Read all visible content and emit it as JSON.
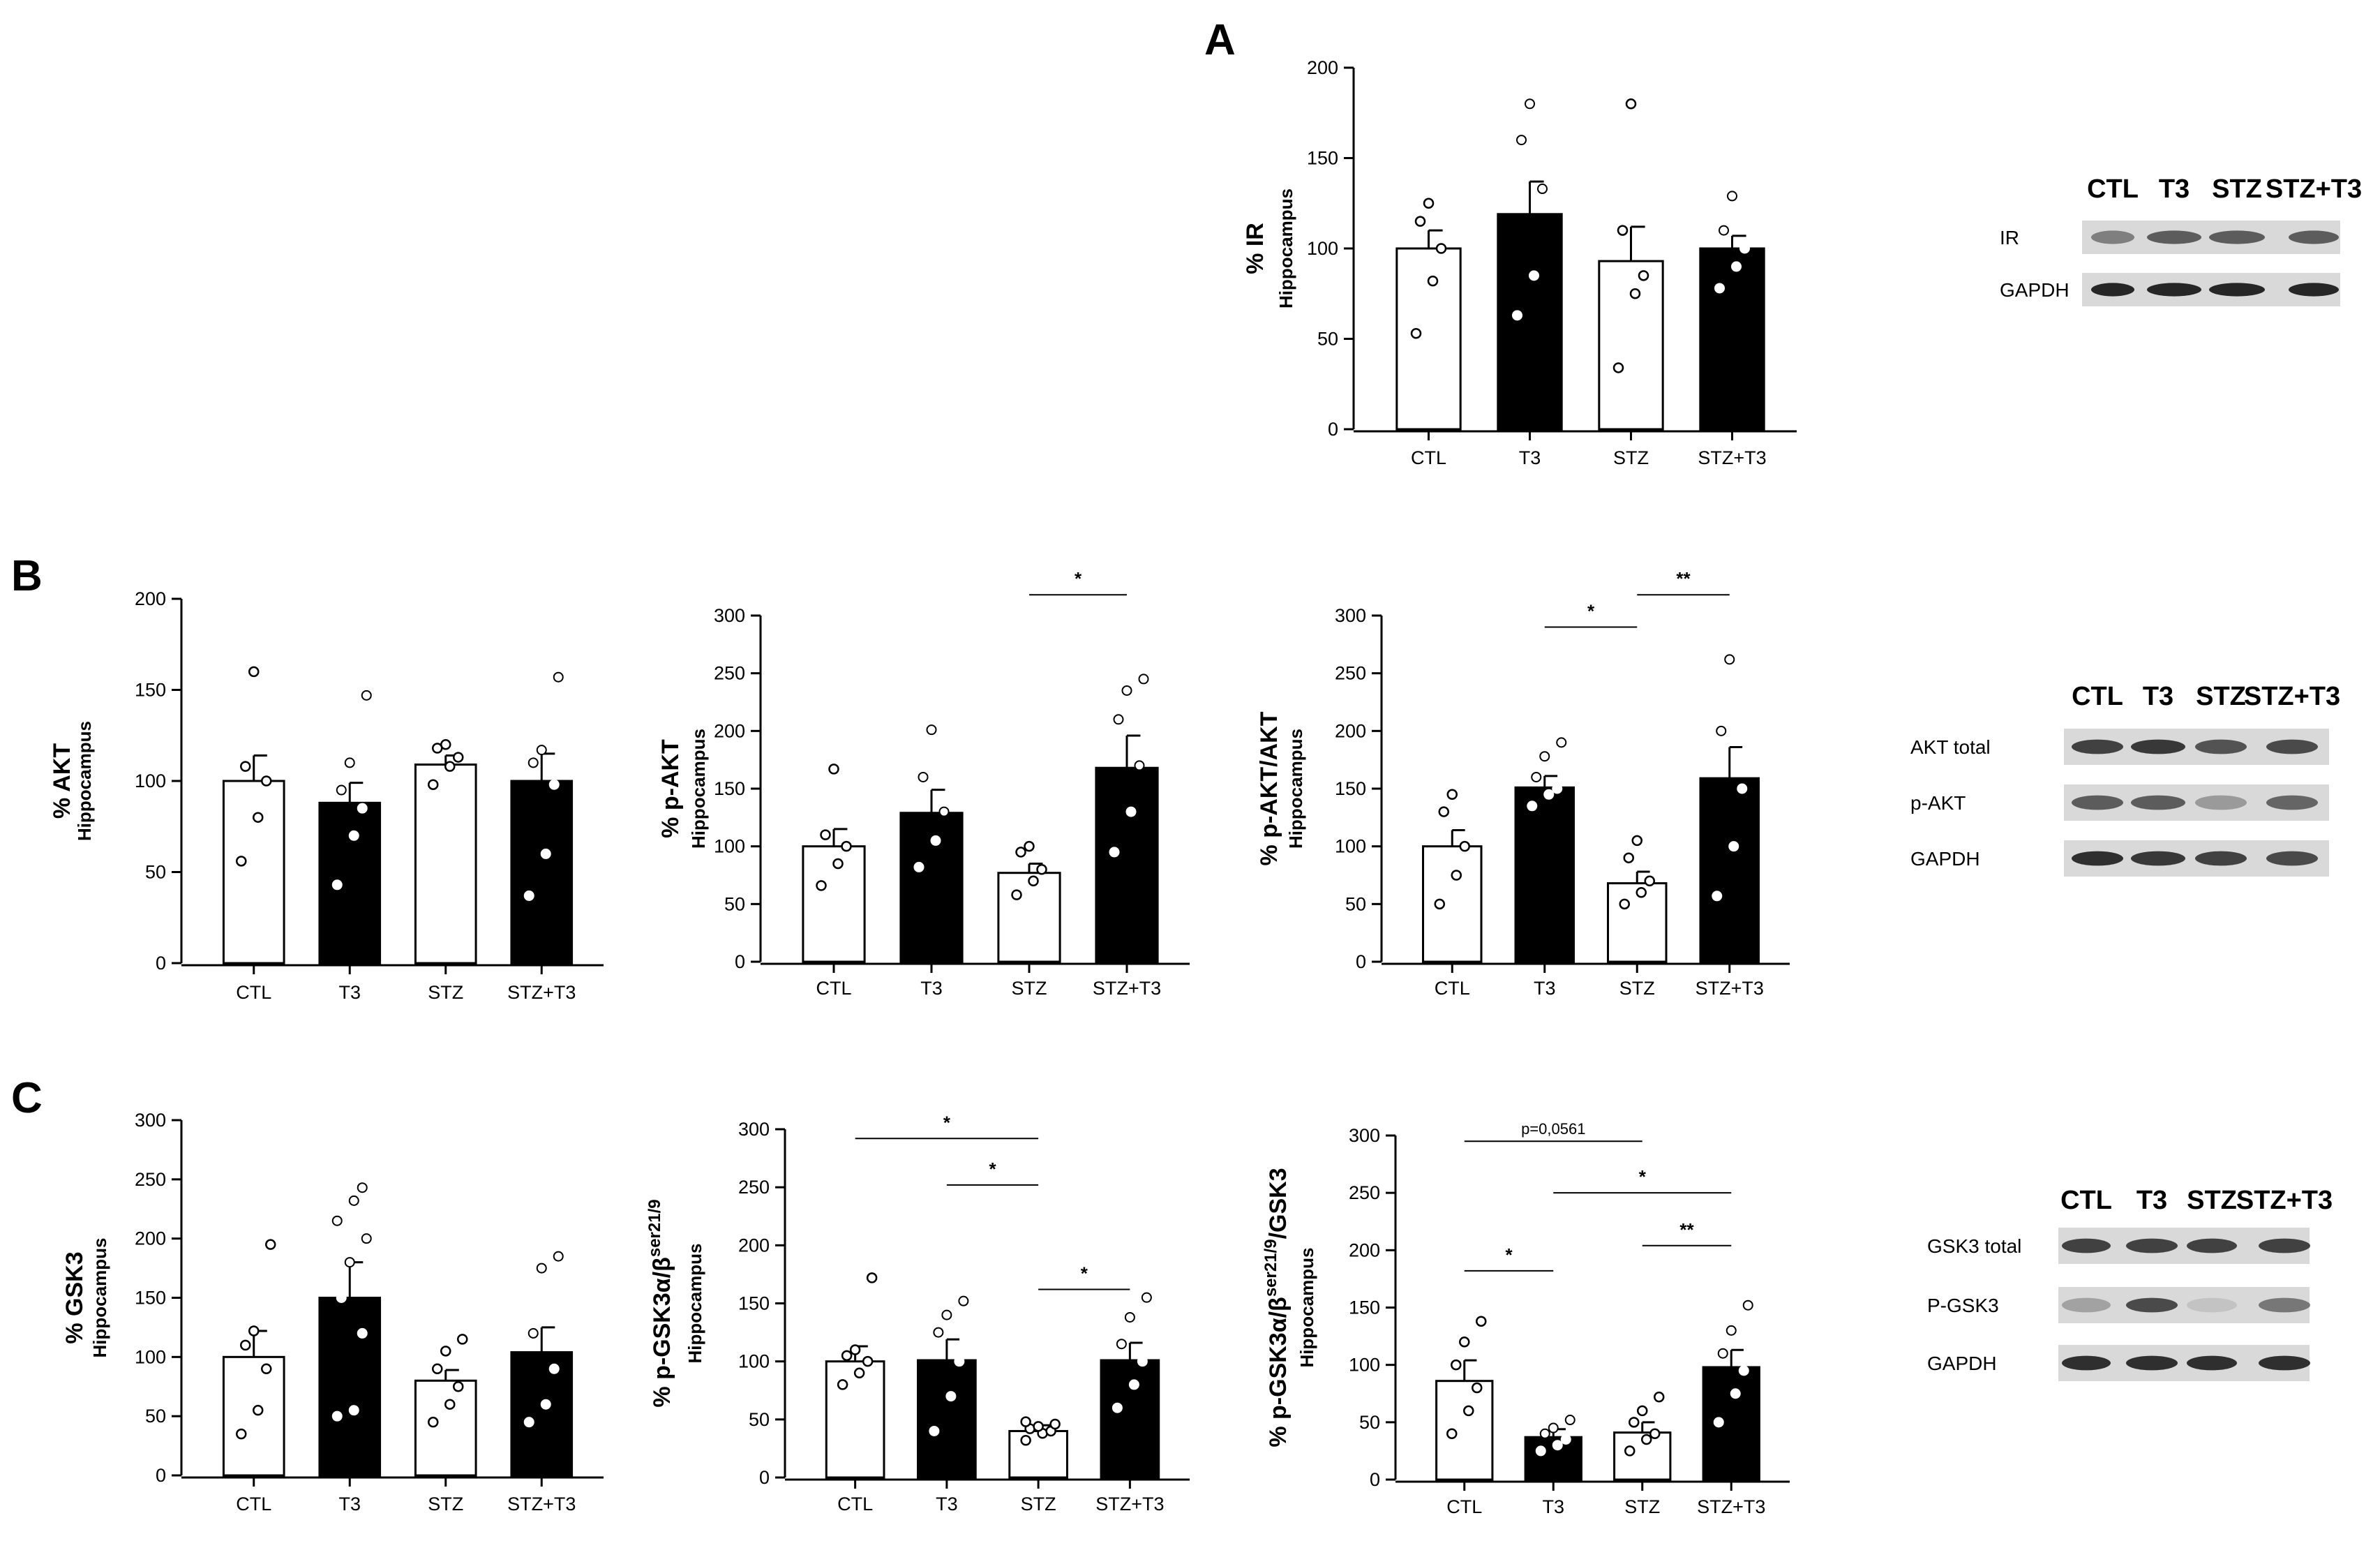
{
  "panels": {
    "A": "A",
    "B": "B",
    "C": "C"
  },
  "colors": {
    "black": "#000000",
    "white": "#ffffff",
    "blot_bg": "#d9d9d9",
    "band": "#262626"
  },
  "chart_data": [
    {
      "id": "A-IR",
      "type": "bar",
      "panel": "A",
      "ylabel": "% IR",
      "ysub": "Hippocampus",
      "categories": [
        "CTL",
        "T3",
        "STZ",
        "STZ+T3"
      ],
      "values": [
        100,
        119,
        93,
        100
      ],
      "errors": [
        10,
        18,
        19,
        7
      ],
      "ylim": [
        0,
        200
      ],
      "yticks": [
        0,
        50,
        100,
        150,
        200
      ],
      "points": [
        [
          53,
          82,
          100,
          115,
          125
        ],
        [
          63,
          85,
          133,
          160,
          180
        ],
        [
          34,
          75,
          85,
          110,
          180
        ],
        [
          78,
          90,
          100,
          110,
          129
        ]
      ],
      "significance": []
    },
    {
      "id": "B-AKT",
      "type": "bar",
      "panel": "B",
      "ylabel": "% AKT",
      "ysub": "Hippocampus",
      "categories": [
        "CTL",
        "T3",
        "STZ",
        "STZ+T3"
      ],
      "values": [
        100,
        88,
        109,
        100
      ],
      "errors": [
        14,
        11,
        5,
        15
      ],
      "ylim": [
        0,
        200
      ],
      "yticks": [
        0,
        50,
        100,
        150,
        200
      ],
      "points": [
        [
          56,
          80,
          100,
          108,
          160
        ],
        [
          43,
          70,
          85,
          95,
          110,
          147
        ],
        [
          98,
          108,
          113,
          118,
          120
        ],
        [
          37,
          60,
          98,
          110,
          117,
          157
        ]
      ],
      "significance": []
    },
    {
      "id": "B-pAKT",
      "type": "bar",
      "panel": "B",
      "ylabel": "% p-AKT",
      "ysub": "Hippocampus",
      "categories": [
        "CTL",
        "T3",
        "STZ",
        "STZ+T3"
      ],
      "values": [
        100,
        129,
        77,
        168
      ],
      "errors": [
        15,
        20,
        8,
        28
      ],
      "ylim": [
        0,
        300
      ],
      "yticks": [
        0,
        50,
        100,
        150,
        200,
        250,
        300
      ],
      "points": [
        [
          66,
          85,
          100,
          110,
          167
        ],
        [
          82,
          105,
          130,
          160,
          201
        ],
        [
          58,
          70,
          80,
          95,
          100
        ],
        [
          95,
          130,
          170,
          210,
          235,
          245
        ]
      ],
      "significance": [
        {
          "from": 2,
          "to": 3,
          "label": "*",
          "y": 318
        }
      ]
    },
    {
      "id": "B-pAKT-AKT",
      "type": "bar",
      "panel": "B",
      "ylabel": "% p-AKT/AKT",
      "ysub": "Hippocampus",
      "categories": [
        "CTL",
        "T3",
        "STZ",
        "STZ+T3"
      ],
      "values": [
        100,
        151,
        68,
        159
      ],
      "errors": [
        14,
        10,
        10,
        27
      ],
      "ylim": [
        0,
        300
      ],
      "yticks": [
        0,
        50,
        100,
        150,
        200,
        250,
        300
      ],
      "points": [
        [
          50,
          75,
          100,
          130,
          145
        ],
        [
          135,
          145,
          150,
          160,
          178,
          190
        ],
        [
          50,
          60,
          70,
          90,
          105
        ],
        [
          57,
          100,
          150,
          200,
          262
        ]
      ],
      "significance": [
        {
          "from": 1,
          "to": 2,
          "label": "*",
          "y": 290
        },
        {
          "from": 2,
          "to": 3,
          "label": "**",
          "y": 318
        }
      ]
    },
    {
      "id": "C-GSK3",
      "type": "bar",
      "panel": "C",
      "ylabel": "% GSK3",
      "ysub": "Hippocampus",
      "categories": [
        "CTL",
        "T3",
        "STZ",
        "STZ+T3"
      ],
      "values": [
        100,
        150,
        80,
        104
      ],
      "errors": [
        22,
        30,
        9,
        21
      ],
      "ylim": [
        0,
        300
      ],
      "yticks": [
        0,
        50,
        100,
        150,
        200,
        250,
        300
      ],
      "points": [
        [
          35,
          55,
          90,
          110,
          122,
          195
        ],
        [
          50,
          55,
          120,
          150,
          180,
          200,
          215,
          232,
          243
        ],
        [
          45,
          60,
          75,
          90,
          105,
          115
        ],
        [
          45,
          60,
          90,
          120,
          175,
          185
        ]
      ],
      "significance": []
    },
    {
      "id": "C-pGSK3",
      "type": "bar",
      "panel": "C",
      "ylabel": "% p-GSK3α/β",
      "ylabel_sup": "ser21/9",
      "ysub": "Hippocampus",
      "categories": [
        "CTL",
        "T3",
        "STZ",
        "STZ+T3"
      ],
      "values": [
        100,
        101,
        40,
        101
      ],
      "errors": [
        13,
        18,
        5,
        15
      ],
      "ylim": [
        0,
        300
      ],
      "yticks": [
        0,
        50,
        100,
        150,
        200,
        250,
        300
      ],
      "points": [
        [
          80,
          90,
          100,
          105,
          110,
          172
        ],
        [
          40,
          70,
          100,
          125,
          140,
          152
        ],
        [
          32,
          38,
          40,
          42,
          44,
          46,
          48
        ],
        [
          60,
          80,
          100,
          115,
          138,
          155
        ]
      ],
      "significance": [
        {
          "from": 0,
          "to": 2,
          "label": "*",
          "y": 292
        },
        {
          "from": 1,
          "to": 2,
          "label": "*",
          "y": 252
        },
        {
          "from": 2,
          "to": 3,
          "label": "*",
          "y": 162
        }
      ]
    },
    {
      "id": "C-pGSK3-GSK3",
      "type": "bar",
      "panel": "C",
      "ylabel": "% p-GSK3α/β",
      "ylabel_sup": "ser21/9",
      "ylabel_tail": "/GSK3",
      "ysub": "Hippocampus",
      "categories": [
        "CTL",
        "T3",
        "STZ",
        "STZ+T3"
      ],
      "values": [
        86,
        37,
        41,
        98
      ],
      "errors": [
        18,
        7,
        9,
        15
      ],
      "ylim": [
        0,
        300
      ],
      "yticks": [
        0,
        50,
        100,
        150,
        200,
        250,
        300
      ],
      "points": [
        [
          40,
          60,
          80,
          100,
          120,
          138
        ],
        [
          25,
          30,
          35,
          40,
          45,
          52
        ],
        [
          25,
          35,
          40,
          50,
          60,
          72
        ],
        [
          50,
          75,
          95,
          110,
          130,
          152
        ]
      ],
      "significance": [
        {
          "from": 0,
          "to": 2,
          "label": "p=0,0561",
          "y": 295
        },
        {
          "from": 1,
          "to": 3,
          "label": "*",
          "y": 250
        },
        {
          "from": 0,
          "to": 1,
          "label": "*",
          "y": 182
        },
        {
          "from": 2,
          "to": 3,
          "label": "**",
          "y": 204
        }
      ]
    }
  ],
  "blots": [
    {
      "id": "blot-A",
      "lanes": [
        "CTL",
        "T3",
        "STZ",
        "STZ+T3"
      ],
      "rows": [
        "IR",
        "GAPDH"
      ]
    },
    {
      "id": "blot-B",
      "lanes": [
        "CTL",
        "T3",
        "STZ",
        "STZ+T3"
      ],
      "rows": [
        "AKT total",
        "p-AKT",
        "GAPDH"
      ]
    },
    {
      "id": "blot-C",
      "lanes": [
        "CTL",
        "T3",
        "STZ",
        "STZ+T3"
      ],
      "rows": [
        "GSK3 total",
        "P-GSK3",
        "GAPDH"
      ]
    }
  ]
}
